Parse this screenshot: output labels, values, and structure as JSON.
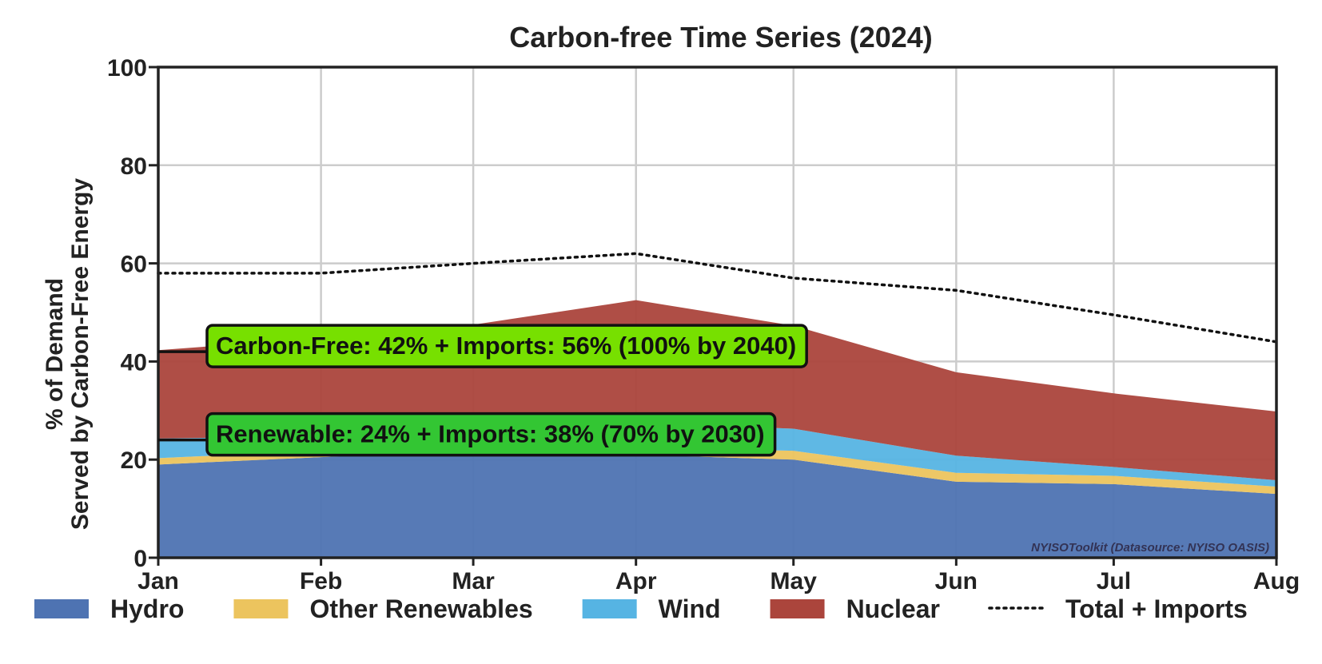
{
  "chart_data": {
    "type": "area",
    "title": "Carbon-free Time Series (2024)",
    "ylabel_lines": [
      "% of Demand",
      "Served by Carbon-Free Energy"
    ],
    "xlabel": "",
    "categories": [
      "Jan",
      "Feb",
      "Mar",
      "Apr",
      "May",
      "Jun",
      "Jul",
      "Aug"
    ],
    "x_days": [
      0,
      31,
      60,
      91,
      121,
      152,
      182,
      213
    ],
    "yticks": [
      0,
      20,
      40,
      60,
      80,
      100
    ],
    "ylim": [
      0,
      100
    ],
    "grid": true,
    "stacked": true,
    "series": [
      {
        "name": "Hydro",
        "color": "#4e73b2",
        "values": [
          19,
          20.5,
          22,
          21,
          20,
          15.5,
          15,
          13
        ]
      },
      {
        "name": "Other Renewables",
        "color": "#ecc45e",
        "values": [
          1.3,
          1.3,
          1.5,
          1.5,
          1.8,
          1.8,
          1.7,
          1.5
        ]
      },
      {
        "name": "Wind",
        "color": "#56b4e3",
        "values": [
          4,
          3,
          3,
          5,
          4.5,
          3.5,
          1.8,
          1.3
        ]
      },
      {
        "name": "Nuclear",
        "color": "#ab453c",
        "values": [
          18,
          20,
          21,
          25,
          21,
          17,
          15,
          14
        ]
      }
    ],
    "total_imports": {
      "name": "Total + Imports",
      "values": [
        58,
        58,
        60,
        62,
        57,
        54.5,
        49.5,
        44
      ]
    },
    "annotations": [
      {
        "text": "Carbon-Free: 42% + Imports: 56% (100% by 2040)",
        "y": 42,
        "color": "#77e000"
      },
      {
        "text": "Renewable: 24% + Imports: 38% (70% by 2030)",
        "y": 24,
        "color": "#33c633"
      }
    ],
    "source_text": "NYISOToolkit (Datasource: NYISO OASIS)",
    "legend_position": "bottom"
  }
}
